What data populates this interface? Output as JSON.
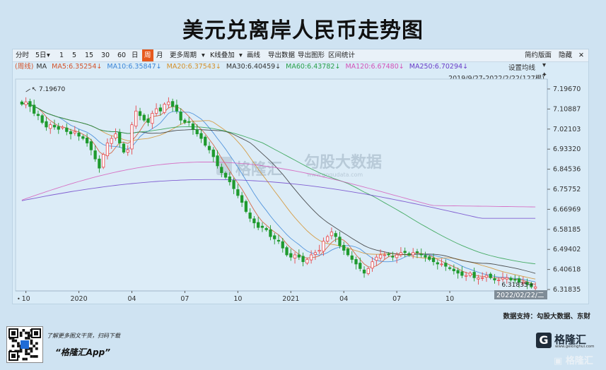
{
  "page_title": "美元兑离岸人民币走势图",
  "toolbar": {
    "items": [
      "分时",
      "5日",
      "1",
      "5",
      "15",
      "30",
      "60",
      "日",
      "周",
      "月",
      "更多周期",
      "K线叠加",
      "画线",
      "导出数据",
      "导出图形",
      "区间统计"
    ],
    "dropdown_5day": "▾",
    "dropdown_more": "▾",
    "dropdown_kline": "▾",
    "active": "周",
    "right_items": [
      "简约版面",
      "隐藏"
    ],
    "close": "✕"
  },
  "ma_legend": {
    "period": "(周线)",
    "ma": "MA",
    "items": [
      {
        "label": "MA5:6.35254↓",
        "color": "#d4532a"
      },
      {
        "label": "MA10:6.35847↓",
        "color": "#3b86d8"
      },
      {
        "label": "MA20:6.37543↓",
        "color": "#d4902a"
      },
      {
        "label": "MA30:6.40459↓",
        "color": "#333333"
      },
      {
        "label": "MA60:6.43782↓",
        "color": "#2aa04a"
      },
      {
        "label": "MA120:6.67480↓",
        "color": "#d452b8"
      },
      {
        "label": "MA250:6.70294↓",
        "color": "#6a3cc8"
      }
    ]
  },
  "settings_label": "设置均线",
  "range_label": "2019/9/27-2022/2/22(127根)",
  "watermark": {
    "brand": "格隆汇",
    "brand2": "勾股大数据",
    "url": "www.gogudata.com"
  },
  "max_label": "7.19670",
  "min_label": "6.31835",
  "crosshair_date": "2022/02/22/二",
  "footer_source": "数据支持：勾股大数据、东财",
  "promo": {
    "line": "了解更多图文干货，扫码下载",
    "app": "“格隆汇App”"
  },
  "logo": {
    "name": "格隆汇",
    "url": "www.gelonghui.com",
    "corner": "格隆汇"
  },
  "chart_data": {
    "type": "candlestick",
    "period": "weekly",
    "y_ticks": [
      "7.19670",
      "7.10887",
      "7.02103",
      "6.93320",
      "6.84536",
      "6.75752",
      "6.66969",
      "6.58185",
      "6.49402",
      "6.40618",
      "6.31835"
    ],
    "ylim": [
      6.31835,
      7.1967
    ],
    "x_tick_labels": [
      "10",
      "2020",
      "04",
      "07",
      "10",
      "2021",
      "04",
      "07",
      "10"
    ],
    "date_range": [
      "2019/9/27",
      "2022/2/22"
    ],
    "bars": 127,
    "close_series": [
      7.13,
      7.14,
      7.12,
      7.09,
      7.08,
      7.05,
      7.03,
      7.04,
      7.03,
      7.02,
      7.03,
      7.01,
      7.0,
      7.01,
      6.99,
      6.98,
      6.96,
      6.93,
      6.89,
      6.85,
      6.91,
      6.96,
      6.98,
      7.0,
      6.96,
      6.92,
      6.93,
      7.04,
      7.1,
      7.08,
      7.06,
      7.05,
      7.09,
      7.11,
      7.1,
      7.13,
      7.14,
      7.12,
      7.1,
      7.06,
      7.05,
      7.05,
      7.02,
      7.0,
      6.98,
      6.95,
      6.93,
      6.9,
      6.86,
      6.83,
      6.81,
      6.79,
      6.76,
      6.73,
      6.7,
      6.66,
      6.63,
      6.61,
      6.59,
      6.59,
      6.58,
      6.55,
      6.54,
      6.53,
      6.5,
      6.47,
      6.46,
      6.47,
      6.46,
      6.44,
      6.45,
      6.47,
      6.48,
      6.49,
      6.53,
      6.55,
      6.57,
      6.55,
      6.51,
      6.49,
      6.47,
      6.45,
      6.43,
      6.41,
      6.39,
      6.41,
      6.44,
      6.46,
      6.47,
      6.47,
      6.47,
      6.46,
      6.47,
      6.48,
      6.48,
      6.47,
      6.48,
      6.48,
      6.47,
      6.46,
      6.45,
      6.44,
      6.43,
      6.43,
      6.42,
      6.41,
      6.4,
      6.39,
      6.38,
      6.38,
      6.39,
      6.37,
      6.37,
      6.37,
      6.38,
      6.37,
      6.36,
      6.36,
      6.37,
      6.37,
      6.36,
      6.36,
      6.35,
      6.35,
      6.34,
      6.33,
      6.33
    ],
    "ma_series": {
      "MA5": 6.35254,
      "MA10": 6.35847,
      "MA20": 6.37543,
      "MA30": 6.40459,
      "MA60": 6.43782,
      "MA120": 6.6748,
      "MA250": 6.70294
    }
  }
}
